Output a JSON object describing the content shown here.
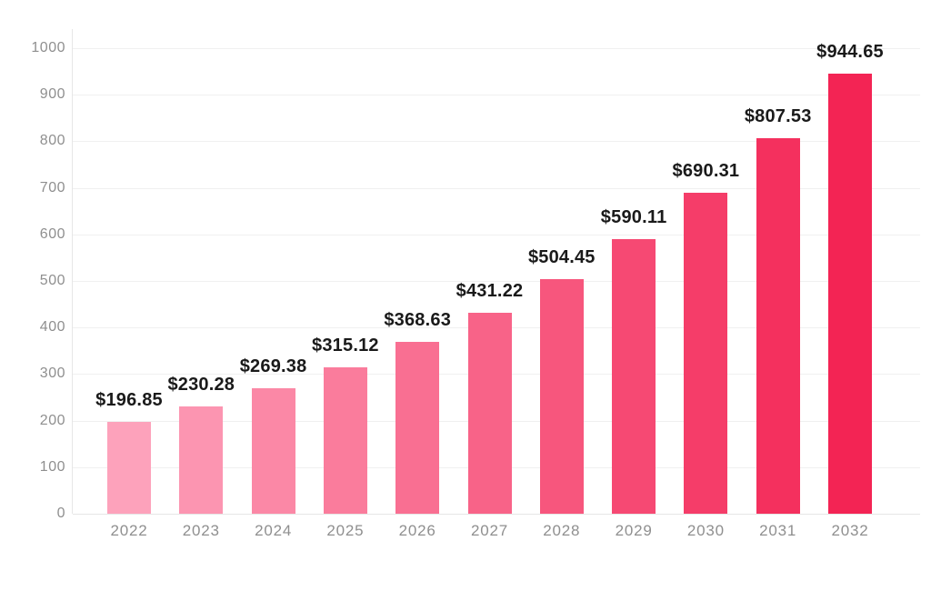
{
  "chart_data": {
    "type": "bar",
    "title": "",
    "xlabel": "",
    "ylabel": "",
    "categories": [
      "2022",
      "2023",
      "2024",
      "2025",
      "2026",
      "2027",
      "2028",
      "2029",
      "2030",
      "2031",
      "2032"
    ],
    "values": [
      196.85,
      230.28,
      269.38,
      315.12,
      368.63,
      431.22,
      504.45,
      590.11,
      690.31,
      807.53,
      944.65
    ],
    "value_labels": [
      "$196.85",
      "$230.28",
      "$269.38",
      "$315.12",
      "$368.63",
      "$431.22",
      "$504.45",
      "$590.11",
      "$690.31",
      "$807.53",
      "$944.65"
    ],
    "bar_colors": [
      "#FDA2BB",
      "#FC95B1",
      "#FB88A6",
      "#FA7C9C",
      "#F96F92",
      "#F86388",
      "#F7567D",
      "#F64973",
      "#F53D69",
      "#F4305E",
      "#F32454"
    ],
    "ylim": [
      0,
      1000
    ],
    "yticks": [
      0,
      100,
      200,
      300,
      400,
      500,
      600,
      700,
      800,
      900,
      1000
    ],
    "grid": true,
    "legend": false,
    "colors": {
      "background": "#ffffff",
      "gridline": "#f0f0f0",
      "axis_line": "#e6e6e6",
      "tick_label": "#8f8f8f",
      "data_label": "#1a1a1a"
    }
  }
}
